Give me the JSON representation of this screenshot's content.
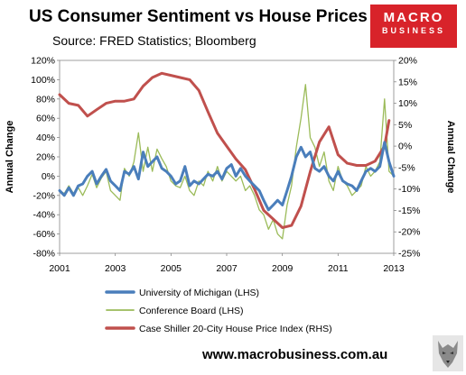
{
  "header": {
    "title": "US Consumer Sentiment vs House Prices",
    "subtitle": "Source: FRED Statistics; Bloomberg"
  },
  "logo": {
    "line1": "MACRO",
    "line2": "BUSINESS"
  },
  "footer": {
    "url": "www.macrobusiness.com.au"
  },
  "colors": {
    "umich": "#4a7ebb",
    "conference": "#9bbb59",
    "caseshiller": "#c0504d",
    "brand_red": "#d8232a"
  },
  "chart_data": {
    "type": "line",
    "xlabel": "",
    "ylabel": "Annual Change",
    "y2label": "Annual Change",
    "xlim": [
      2001,
      2013
    ],
    "ylim": [
      -80,
      120
    ],
    "y2lim": [
      -25,
      20
    ],
    "x_ticks": [
      "2001",
      "2003",
      "2005",
      "2007",
      "2009",
      "2011",
      "2013"
    ],
    "y_ticks": [
      "120%",
      "100%",
      "80%",
      "60%",
      "40%",
      "20%",
      "0%",
      "-20%",
      "-40%",
      "-60%",
      "-80%"
    ],
    "y2_ticks": [
      "20%",
      "15%",
      "10%",
      "5%",
      "0%",
      "-5%",
      "-10%",
      "-15%",
      "-20%",
      "-25%"
    ],
    "legend_position": "bottom",
    "series": [
      {
        "name": "University of Michigan (LHS)",
        "axis": "left",
        "x": [
          2001.0,
          2001.17,
          2001.33,
          2001.5,
          2001.67,
          2001.83,
          2002.0,
          2002.17,
          2002.33,
          2002.5,
          2002.67,
          2002.83,
          2003.0,
          2003.17,
          2003.33,
          2003.5,
          2003.67,
          2003.83,
          2004.0,
          2004.17,
          2004.33,
          2004.5,
          2004.67,
          2004.83,
          2005.0,
          2005.17,
          2005.33,
          2005.5,
          2005.67,
          2005.83,
          2006.0,
          2006.17,
          2006.33,
          2006.5,
          2006.67,
          2006.83,
          2007.0,
          2007.17,
          2007.33,
          2007.5,
          2007.67,
          2007.83,
          2008.0,
          2008.17,
          2008.33,
          2008.5,
          2008.67,
          2008.83,
          2009.0,
          2009.17,
          2009.33,
          2009.5,
          2009.67,
          2009.83,
          2010.0,
          2010.17,
          2010.33,
          2010.5,
          2010.67,
          2010.83,
          2011.0,
          2011.17,
          2011.33,
          2011.5,
          2011.67,
          2011.83,
          2012.0,
          2012.17,
          2012.33,
          2012.5,
          2012.67,
          2012.83,
          2013.0
        ],
        "values": [
          -15,
          -20,
          -12,
          -20,
          -10,
          -8,
          0,
          5,
          -8,
          0,
          7,
          -5,
          -10,
          -15,
          5,
          2,
          10,
          -3,
          25,
          10,
          15,
          20,
          8,
          5,
          0,
          -8,
          -5,
          10,
          -10,
          -5,
          -8,
          -3,
          2,
          0,
          5,
          -3,
          8,
          12,
          0,
          8,
          0,
          -5,
          -10,
          -15,
          -25,
          -35,
          -30,
          -25,
          -30,
          -15,
          0,
          20,
          30,
          20,
          25,
          8,
          5,
          10,
          0,
          -5,
          5,
          -5,
          -8,
          -10,
          -15,
          -5,
          5,
          8,
          5,
          10,
          35,
          15,
          0
        ]
      },
      {
        "name": "Conference Board (LHS)",
        "axis": "left",
        "x": [
          2001.0,
          2001.17,
          2001.33,
          2001.5,
          2001.67,
          2001.83,
          2002.0,
          2002.17,
          2002.33,
          2002.5,
          2002.67,
          2002.83,
          2003.0,
          2003.17,
          2003.33,
          2003.5,
          2003.67,
          2003.83,
          2004.0,
          2004.17,
          2004.33,
          2004.5,
          2004.67,
          2004.83,
          2005.0,
          2005.17,
          2005.33,
          2005.5,
          2005.67,
          2005.83,
          2006.0,
          2006.17,
          2006.33,
          2006.5,
          2006.67,
          2006.83,
          2007.0,
          2007.17,
          2007.33,
          2007.5,
          2007.67,
          2007.83,
          2008.0,
          2008.17,
          2008.33,
          2008.5,
          2008.67,
          2008.83,
          2009.0,
          2009.17,
          2009.33,
          2009.5,
          2009.67,
          2009.83,
          2010.0,
          2010.17,
          2010.33,
          2010.5,
          2010.67,
          2010.83,
          2011.0,
          2011.17,
          2011.33,
          2011.5,
          2011.67,
          2011.83,
          2012.0,
          2012.17,
          2012.33,
          2012.5,
          2012.67,
          2012.83,
          2013.0
        ],
        "values": [
          -15,
          -18,
          -10,
          -18,
          -12,
          -20,
          -10,
          2,
          -12,
          -2,
          5,
          -15,
          -20,
          -25,
          8,
          0,
          15,
          45,
          5,
          30,
          5,
          28,
          18,
          10,
          -5,
          -10,
          -12,
          0,
          -15,
          -20,
          -5,
          -10,
          5,
          -5,
          10,
          -5,
          5,
          0,
          -5,
          0,
          -15,
          -10,
          -20,
          -35,
          -40,
          -55,
          -45,
          -60,
          -65,
          -30,
          -10,
          30,
          60,
          95,
          40,
          30,
          10,
          25,
          -5,
          -15,
          10,
          -5,
          -10,
          -20,
          -15,
          -10,
          10,
          0,
          5,
          15,
          80,
          5,
          0
        ]
      },
      {
        "name": "Case Shiller 20-City House Price Index (RHS)",
        "axis": "right",
        "x": [
          2001.0,
          2001.33,
          2001.67,
          2002.0,
          2002.33,
          2002.67,
          2003.0,
          2003.33,
          2003.67,
          2004.0,
          2004.33,
          2004.67,
          2005.0,
          2005.33,
          2005.67,
          2006.0,
          2006.33,
          2006.67,
          2007.0,
          2007.33,
          2007.67,
          2008.0,
          2008.33,
          2008.67,
          2009.0,
          2009.33,
          2009.67,
          2010.0,
          2010.33,
          2010.67,
          2011.0,
          2011.33,
          2011.67,
          2012.0,
          2012.33,
          2012.67,
          2012.83
        ],
        "values": [
          12,
          10,
          9.5,
          7,
          8.5,
          10,
          10.5,
          10.5,
          11,
          14,
          16,
          17,
          16.5,
          16,
          15.5,
          13,
          8,
          3,
          0,
          -3,
          -5.5,
          -10,
          -15,
          -17,
          -19,
          -18.5,
          -14,
          -6,
          1,
          4.5,
          -2,
          -4,
          -4.5,
          -4.5,
          -3.5,
          0,
          6
        ]
      }
    ]
  }
}
